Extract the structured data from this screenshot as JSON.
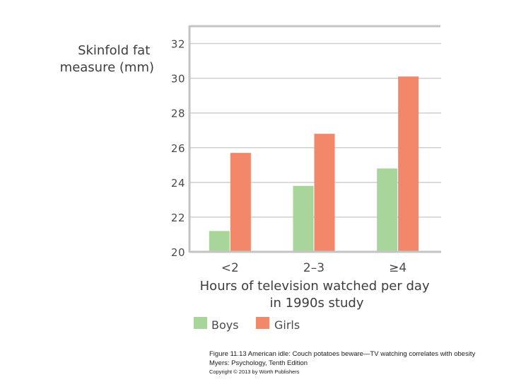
{
  "chart_data": {
    "type": "bar",
    "ylabel_lines": [
      "Skinfold fat",
      "measure (mm)"
    ],
    "xlabel_lines": [
      "Hours of television watched per day",
      "in 1990s study"
    ],
    "categories": [
      "<2",
      "2–3",
      "≥4"
    ],
    "series": [
      {
        "name": "Boys",
        "values": [
          21.2,
          23.8,
          24.8
        ]
      },
      {
        "name": "Girls",
        "values": [
          25.7,
          26.8,
          30.1
        ]
      }
    ],
    "yticks": [
      "20",
      "22",
      "24",
      "26",
      "28",
      "30",
      "32"
    ],
    "ylim": [
      20,
      33
    ],
    "grid": true,
    "legend_position": "bottom",
    "colors": {
      "Boys": "#a8d69a",
      "Girls": "#f2876a",
      "grid": "#cfcfcf",
      "frame": "#c4c4c4"
    }
  },
  "caption": {
    "line1": "Figure 11.13 American idle: Couch potatoes beware—TV watching correlates with obesity",
    "line2": "Myers: Psychology, Tenth Edition",
    "line3": "Copyright © 2013 by Worth Publishers"
  }
}
